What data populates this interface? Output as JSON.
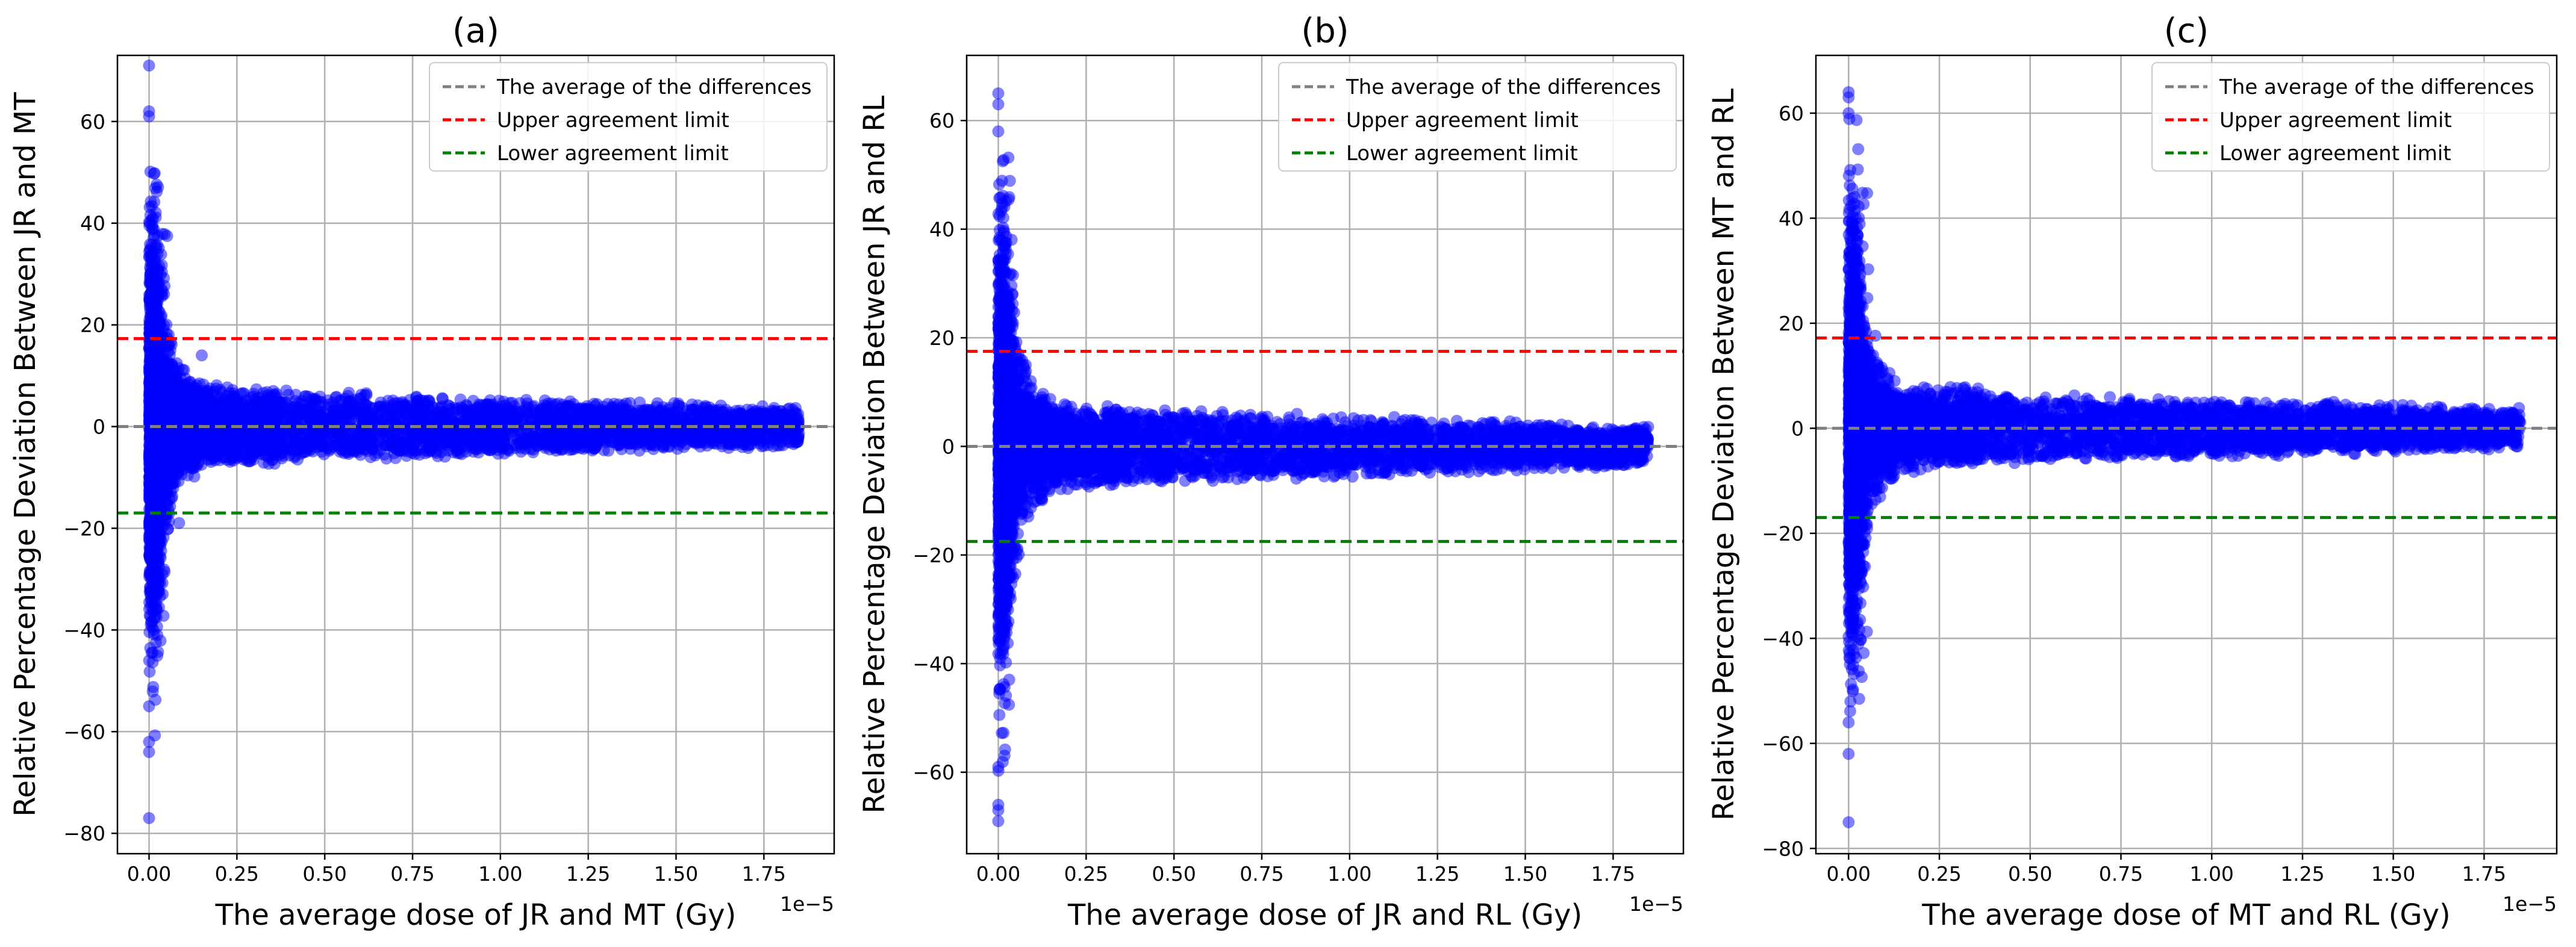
{
  "chart_data": [
    {
      "type": "scatter",
      "panel": "(a)",
      "title": "(a)",
      "xlabel": "The average dose of JR and MT (Gy)",
      "ylabel": "Relative Percentage Deviation Between JR and MT",
      "x_offset_label": "1e−5",
      "x_scale": "1e-5",
      "xlim": [
        -0.09,
        1.95
      ],
      "ylim": [
        -84,
        73
      ],
      "xticks": [
        0.0,
        0.25,
        0.5,
        0.75,
        1.0,
        1.25,
        1.5,
        1.75
      ],
      "xtick_labels": [
        "0.00",
        "0.25",
        "0.50",
        "0.75",
        "1.00",
        "1.25",
        "1.50",
        "1.75"
      ],
      "yticks": [
        -80,
        -60,
        -40,
        -20,
        0,
        20,
        40,
        60
      ],
      "ytick_labels": [
        "−80",
        "−60",
        "−40",
        "−20",
        "0",
        "20",
        "40",
        "60"
      ],
      "grid": true,
      "legend_position": "top-right",
      "mean_difference": 0.0,
      "upper_limit": 17.3,
      "lower_limit": -17.0,
      "scatter_envelope": {
        "x_max": 1.85,
        "near_zero_max": 71,
        "near_zero_min": -77,
        "mid_range_spread": 8,
        "high_dose_spread": 4
      },
      "outliers": [
        {
          "x": 0.0,
          "y": 71.0
        },
        {
          "x": 0.0,
          "y": 62.0
        },
        {
          "x": 0.0,
          "y": 61.0
        },
        {
          "x": 0.0,
          "y": -77.0
        },
        {
          "x": 0.0,
          "y": -64.0
        },
        {
          "x": 0.0,
          "y": -62.0
        },
        {
          "x": 0.0,
          "y": -55.0
        },
        {
          "x": 0.15,
          "y": 14.0
        }
      ],
      "legend": [
        {
          "label": "The average of the differences",
          "color": "#808080",
          "style": "dashed"
        },
        {
          "label": "Upper agreement limit",
          "color": "#ff0000",
          "style": "dashed"
        },
        {
          "label": "Lower agreement limit",
          "color": "#008000",
          "style": "dashed"
        }
      ],
      "point_color": "#0000ff"
    },
    {
      "type": "scatter",
      "panel": "(b)",
      "title": "(b)",
      "xlabel": "The average dose of JR and RL (Gy)",
      "ylabel": "Relative Percentage Deviation Between JR and RL",
      "x_offset_label": "1e−5",
      "x_scale": "1e-5",
      "xlim": [
        -0.09,
        1.95
      ],
      "ylim": [
        -75,
        72
      ],
      "xticks": [
        0.0,
        0.25,
        0.5,
        0.75,
        1.0,
        1.25,
        1.5,
        1.75
      ],
      "xtick_labels": [
        "0.00",
        "0.25",
        "0.50",
        "0.75",
        "1.00",
        "1.25",
        "1.50",
        "1.75"
      ],
      "yticks": [
        -60,
        -40,
        -20,
        0,
        20,
        40,
        60
      ],
      "ytick_labels": [
        "−60",
        "−40",
        "−20",
        "0",
        "20",
        "40",
        "60"
      ],
      "grid": true,
      "legend_position": "top-right",
      "mean_difference": 0.0,
      "upper_limit": 17.5,
      "lower_limit": -17.5,
      "scatter_envelope": {
        "x_max": 1.85,
        "near_zero_max": 65,
        "near_zero_min": -69,
        "mid_range_spread": 8,
        "high_dose_spread": 4
      },
      "outliers": [
        {
          "x": 0.0,
          "y": 65.0
        },
        {
          "x": 0.0,
          "y": 63.0
        },
        {
          "x": 0.0,
          "y": 58.0
        },
        {
          "x": 0.0,
          "y": -69.0
        },
        {
          "x": 0.0,
          "y": -67.0
        },
        {
          "x": 0.0,
          "y": -66.0
        },
        {
          "x": 0.0,
          "y": -59.0
        }
      ],
      "legend": [
        {
          "label": "The average of the differences",
          "color": "#808080",
          "style": "dashed"
        },
        {
          "label": "Upper agreement limit",
          "color": "#ff0000",
          "style": "dashed"
        },
        {
          "label": "Lower agreement limit",
          "color": "#008000",
          "style": "dashed"
        }
      ],
      "point_color": "#0000ff"
    },
    {
      "type": "scatter",
      "panel": "(c)",
      "title": "(c)",
      "xlabel": "The average dose of MT and RL (Gy)",
      "ylabel": "Relative Percentage Deviation Between MT and RL",
      "x_offset_label": "1e−5",
      "x_scale": "1e-5",
      "xlim": [
        -0.09,
        1.95
      ],
      "ylim": [
        -81,
        71
      ],
      "xticks": [
        0.0,
        0.25,
        0.5,
        0.75,
        1.0,
        1.25,
        1.5,
        1.75
      ],
      "xtick_labels": [
        "0.00",
        "0.25",
        "0.50",
        "0.75",
        "1.00",
        "1.25",
        "1.50",
        "1.75"
      ],
      "yticks": [
        -80,
        -60,
        -40,
        -20,
        0,
        20,
        40,
        60
      ],
      "ytick_labels": [
        "−80",
        "−60",
        "−40",
        "−20",
        "0",
        "20",
        "40",
        "60"
      ],
      "grid": true,
      "legend_position": "top-right",
      "mean_difference": 0.0,
      "upper_limit": 17.2,
      "lower_limit": -17.0,
      "scatter_envelope": {
        "x_max": 1.85,
        "near_zero_max": 64,
        "near_zero_min": -75,
        "mid_range_spread": 8,
        "high_dose_spread": 4
      },
      "outliers": [
        {
          "x": 0.0,
          "y": 64.0
        },
        {
          "x": 0.0,
          "y": 63.0
        },
        {
          "x": 0.0,
          "y": 60.0
        },
        {
          "x": 0.0,
          "y": -75.0
        },
        {
          "x": 0.0,
          "y": -62.0
        },
        {
          "x": 0.0,
          "y": -56.0
        }
      ],
      "legend": [
        {
          "label": "The average of the differences",
          "color": "#808080",
          "style": "dashed"
        },
        {
          "label": "Upper agreement limit",
          "color": "#ff0000",
          "style": "dashed"
        },
        {
          "label": "Lower agreement limit",
          "color": "#008000",
          "style": "dashed"
        }
      ],
      "point_color": "#0000ff"
    }
  ]
}
